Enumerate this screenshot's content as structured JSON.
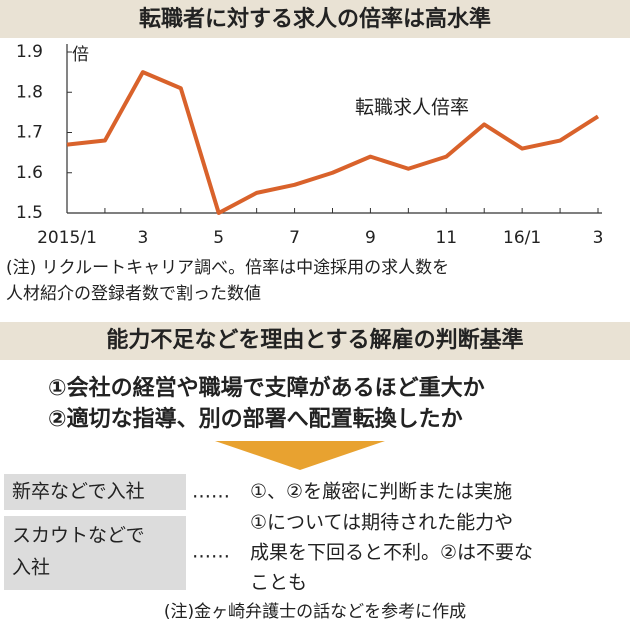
{
  "chart_data": {
    "type": "line",
    "title": "転職者に対する求人の倍率は高水準",
    "y_unit_label": "倍",
    "categories": [
      "2015/1",
      null,
      "3",
      null,
      "5",
      null,
      "7",
      null,
      "9",
      null,
      "11",
      null,
      "16/1",
      null,
      "3"
    ],
    "series": [
      {
        "name": "転職求人倍率",
        "color": "#d9622b",
        "values": [
          1.67,
          1.68,
          1.85,
          1.81,
          1.5,
          1.55,
          1.57,
          1.6,
          1.64,
          1.61,
          1.64,
          1.72,
          1.66,
          1.68,
          1.74
        ]
      }
    ],
    "ylim": [
      1.5,
      1.9
    ],
    "yticks": [
      1.5,
      1.6,
      1.7,
      1.8,
      1.9
    ],
    "note": [
      "(注) リクルートキャリア調べ。倍率は中途採用の求人数を",
      "人材紹介の登録者数で割った数値"
    ]
  },
  "criteria": {
    "title": "能力不足などを理由とする解雇の判断基準",
    "items": [
      "①会社の経営や職場で支障があるほど重大か",
      "②適切な指導、別の部署へ配置転換したか"
    ],
    "cases": [
      {
        "label": [
          "新卒などで入社"
        ],
        "leader": "……",
        "text": [
          "①、②を厳密に判断または実施"
        ]
      },
      {
        "label": [
          "スカウトなどで",
          "入社"
        ],
        "leader": "……",
        "text": [
          "①については期待された能力や",
          "成果を下回ると不利。②は不要な",
          "ことも"
        ]
      }
    ],
    "source": "(注)金ヶ崎弁護士の話などを参考に作成"
  }
}
